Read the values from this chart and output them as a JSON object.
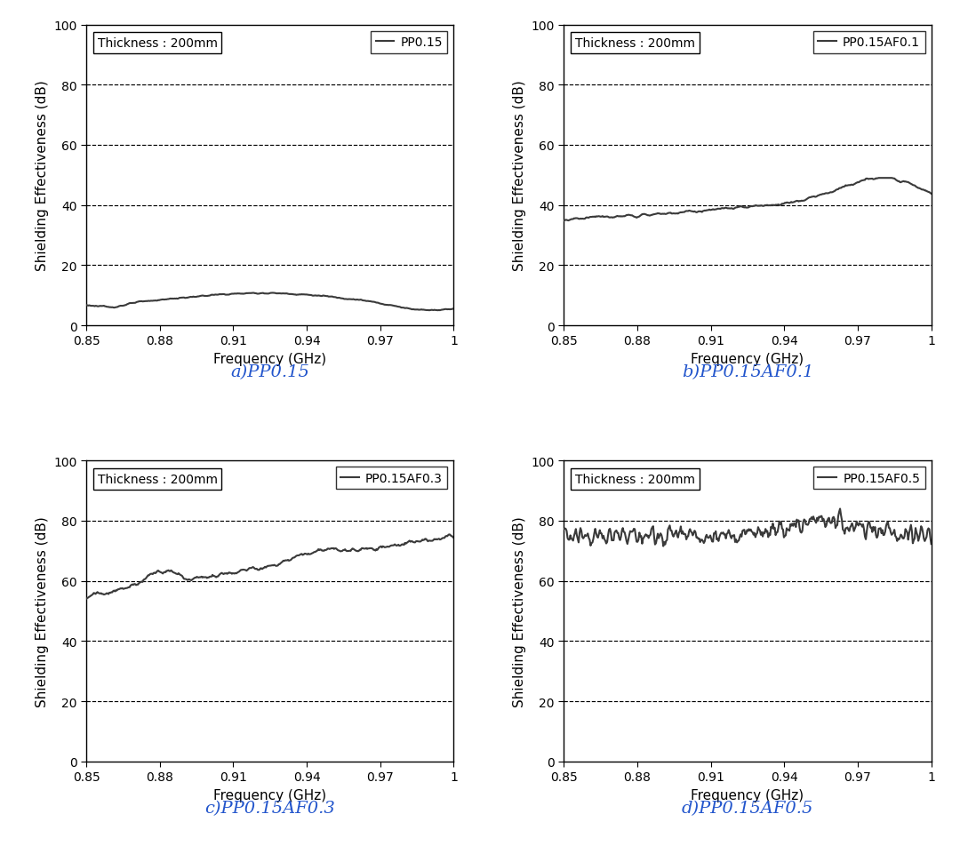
{
  "thickness_label": "Thickness : 200mm",
  "legends": [
    "PP0.15",
    "PP0.15AF0.1",
    "PP0.15AF0.3",
    "PP0.15AF0.5"
  ],
  "subtitles": [
    "a)PP0.15",
    "b)PP0.15AF0.1",
    "c)PP0.15AF0.3",
    "d)PP0.15AF0.5"
  ],
  "subtitle_colors": [
    "#2255cc",
    "#2255cc",
    "#2255cc",
    "#2255cc"
  ],
  "xlabel": "Frequency (GHz)",
  "ylabel": "Shielding Effectiveness (dB)",
  "xlim": [
    0.85,
    1.0
  ],
  "ylim": [
    0,
    100
  ],
  "xtick_labels": [
    "0.85",
    "0.88",
    "0.91",
    "0.94",
    "0.97",
    "1"
  ],
  "xtick_vals": [
    0.85,
    0.88,
    0.91,
    0.94,
    0.97,
    1.0
  ],
  "ytick_vals": [
    0,
    20,
    40,
    60,
    80,
    100
  ],
  "line_color": "#3a3a3a",
  "grid_levels": [
    20,
    40,
    60,
    80
  ],
  "background": "#ffffff",
  "figsize": [
    10.8,
    9.53
  ],
  "dpi": 100,
  "subtitle_fontsize": 14,
  "axis_label_fontsize": 11,
  "tick_fontsize": 10,
  "annotation_fontsize": 10,
  "legend_fontsize": 10
}
